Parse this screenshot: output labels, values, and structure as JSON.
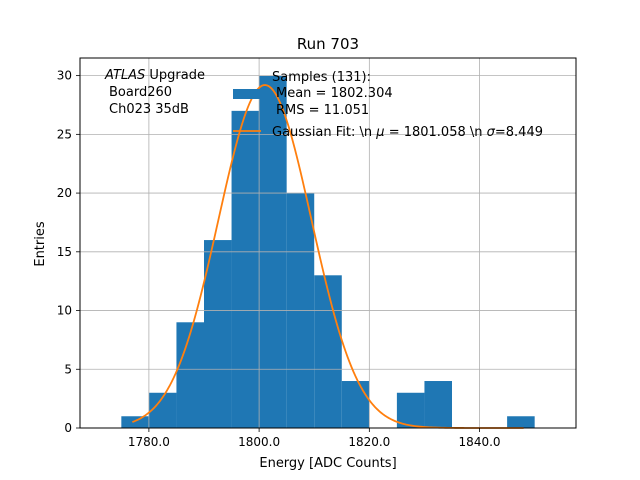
{
  "chart_data": {
    "type": "bar",
    "title": "Run 703",
    "xlabel": "Energy [ADC Counts]",
    "ylabel": "Entries",
    "xlim": [
      1767.5,
      1857.5
    ],
    "ylim": [
      0,
      31.5
    ],
    "x_ticks": [
      1780,
      1800,
      1820,
      1840
    ],
    "x_tick_labels": [
      "1780.0",
      "1800.0",
      "1820.0",
      "1840.0"
    ],
    "y_ticks": [
      0,
      5,
      10,
      15,
      20,
      25,
      30
    ],
    "y_tick_labels": [
      "0",
      "5",
      "10",
      "15",
      "20",
      "25",
      "30"
    ],
    "grid": true,
    "bin_edges": [
      1775,
      1780,
      1785,
      1790,
      1795,
      1800,
      1805,
      1810,
      1815,
      1820,
      1825,
      1830,
      1835,
      1840,
      1845,
      1850
    ],
    "counts": [
      1,
      3,
      9,
      16,
      27,
      30,
      20,
      13,
      4,
      0,
      3,
      4,
      0,
      0,
      1
    ],
    "fit": {
      "name": "Gaussian Fit",
      "mu": 1801.058,
      "sigma": 8.449,
      "amplitude": 29.2,
      "x_range": [
        1777,
        1848
      ]
    },
    "colors": {
      "bars": "#1f77b4",
      "fit_line": "#ff7f0e",
      "grid": "#b0b0b0"
    },
    "annotation": {
      "line1_italic": "ATLAS",
      "line1_rest": " Upgrade",
      "line2": "Board260",
      "line3": "Ch023 35dB"
    },
    "legend": {
      "location": "upper-right",
      "hist_lines": [
        "Samples (131):",
        "Mean = 1802.304",
        "RMS = 11.051"
      ],
      "fit_label_a": "Gaussian Fit: \\n ",
      "fit_label_mu": "μ",
      "fit_label_b": " = 1801.058 \\n ",
      "fit_label_sigma": "σ",
      "fit_label_c": "=8.449"
    }
  }
}
